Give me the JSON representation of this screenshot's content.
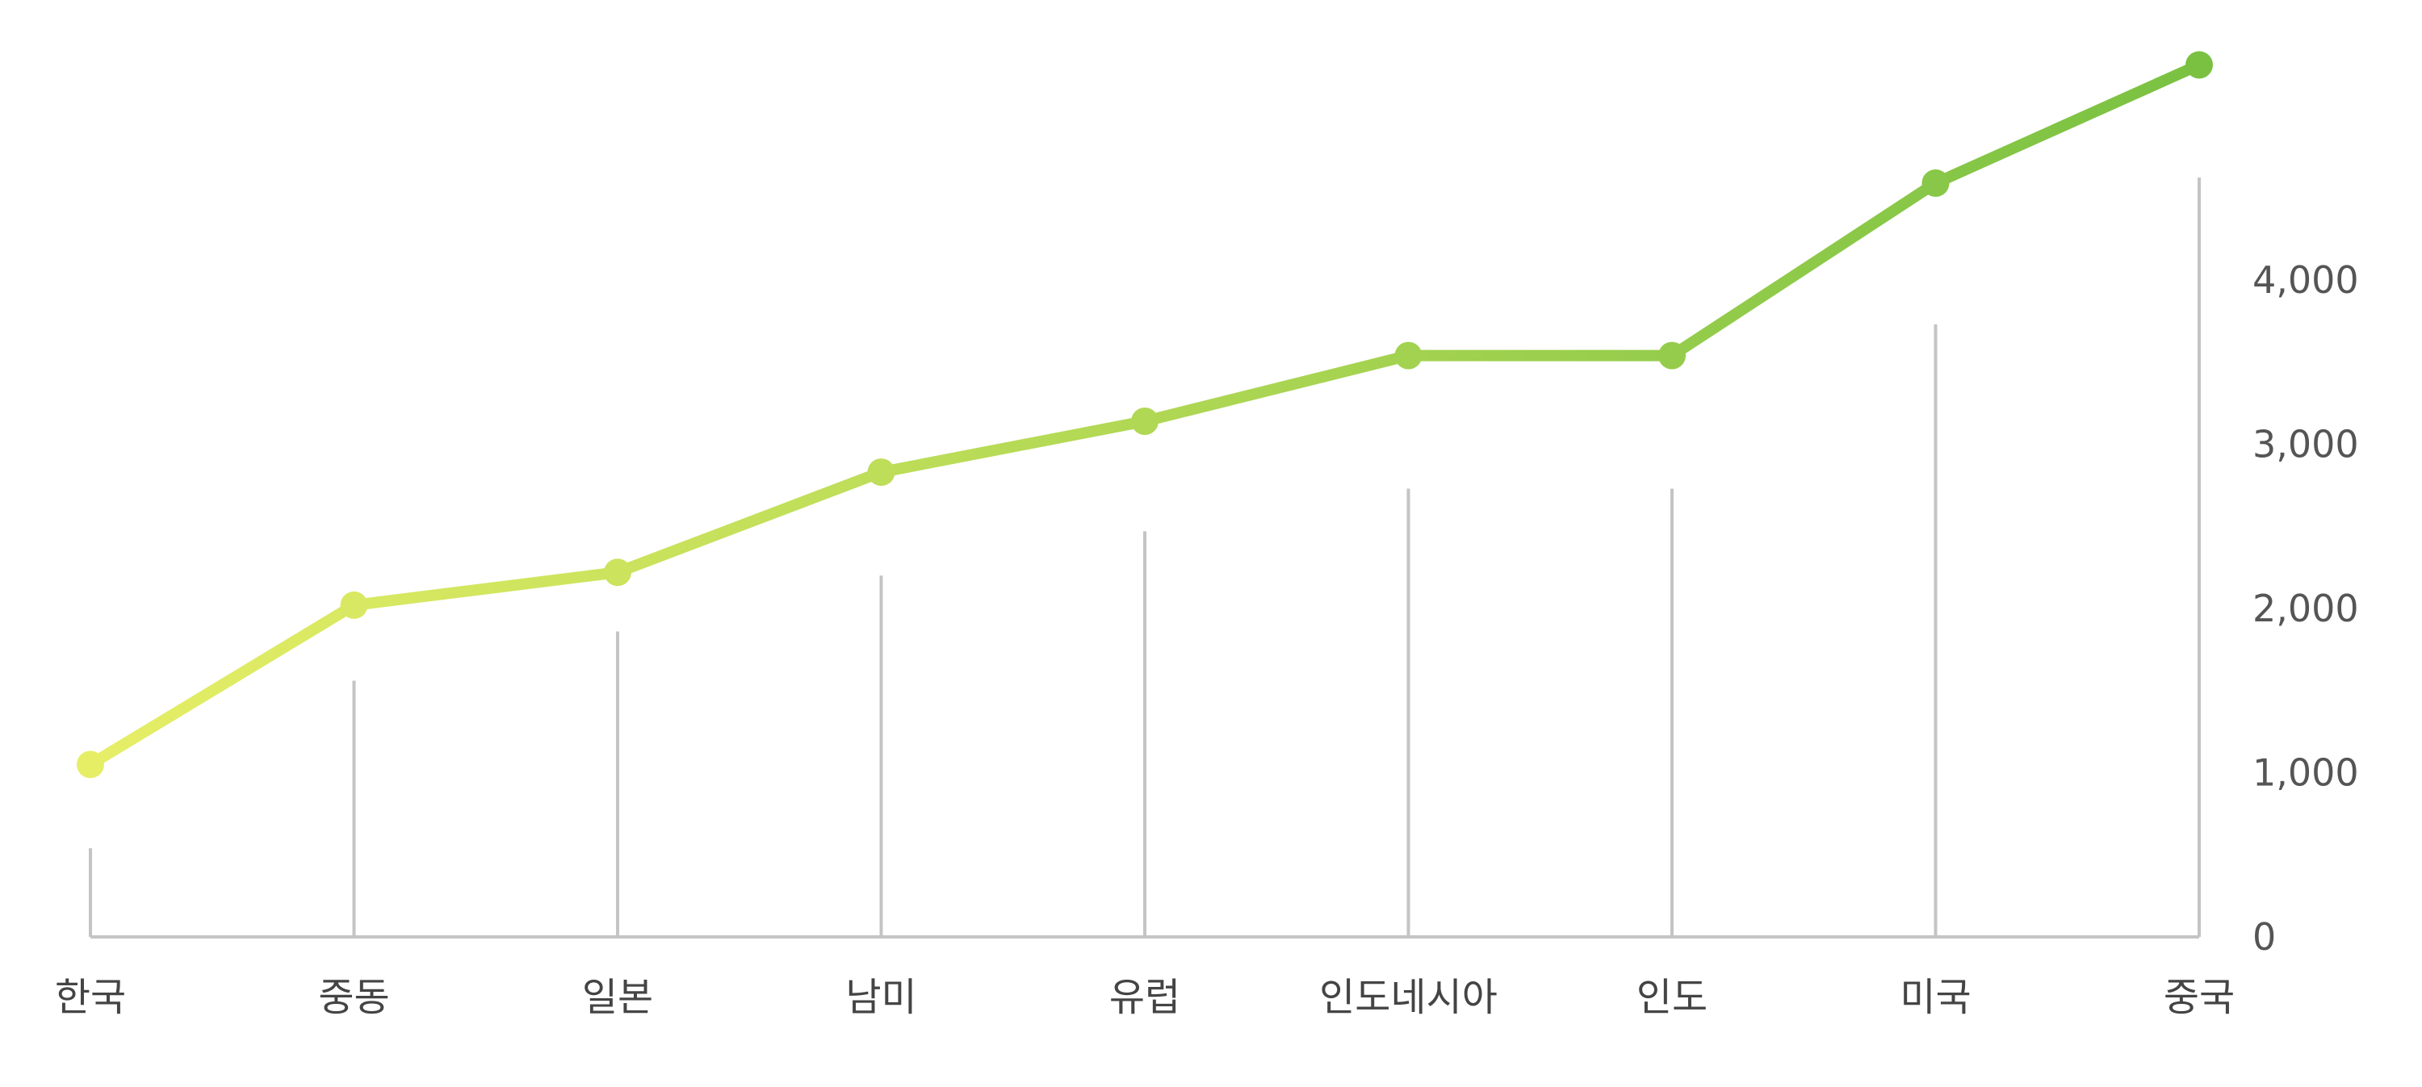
{
  "chart_data": {
    "type": "line",
    "categories": [
      "한국",
      "중동",
      "일본",
      "남미",
      "유럽",
      "인도네시아",
      "인도",
      "미국",
      "중국"
    ],
    "series": [
      {
        "values": [
          1050,
          2020,
          2220,
          2830,
          3140,
          3540,
          3540,
          4590,
          5310
        ]
      }
    ],
    "reference_bars": [
      540,
      1560,
      1860,
      2200,
      2470,
      2730,
      2730,
      3730,
      4450
    ],
    "y_ticks": [
      0,
      1000,
      2000,
      3000,
      4000
    ],
    "y_tick_labels": [
      "0",
      "1,000",
      "2,000",
      "3,000",
      "4,000"
    ],
    "ylim": [
      0,
      5310
    ],
    "y_axis_position": "right",
    "legend": "none",
    "grid": false,
    "colors": {
      "line_start": "#e6ee66",
      "line_end": "#7ac142",
      "reference_bar": "#c4c4c4",
      "axis": "#c4c4c4"
    }
  }
}
